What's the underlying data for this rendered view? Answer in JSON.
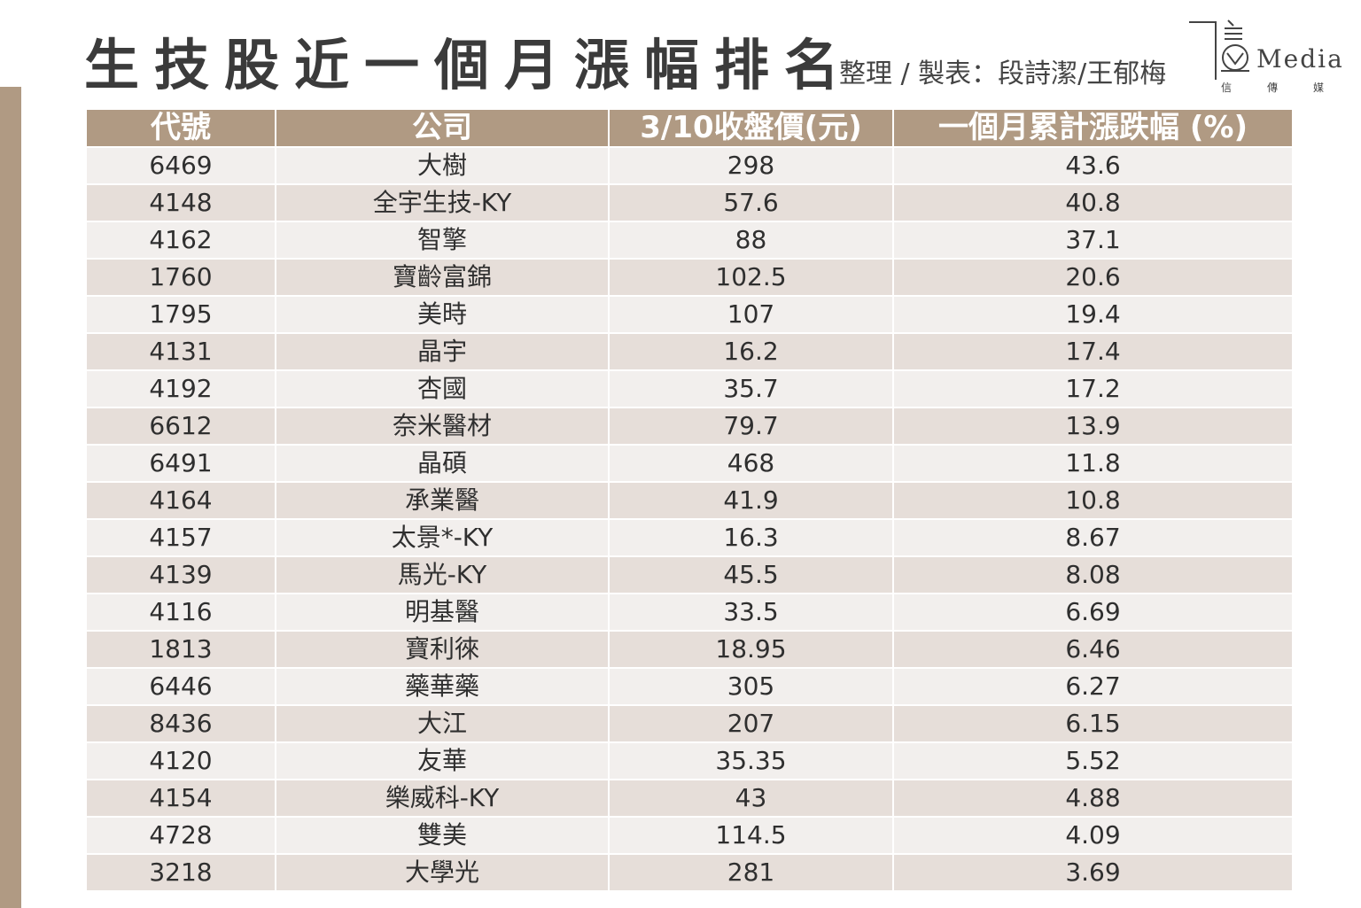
{
  "title": "生技股近一個月漲幅排名",
  "credits": "整理 / 製表：段詩潔/王郁梅",
  "logo": {
    "text": "Media",
    "sub": "信傳媒"
  },
  "table": {
    "headers": [
      "代號",
      "公司",
      "3/10收盤價(元)",
      "一個月累計漲跌幅 (%)"
    ],
    "rows": [
      [
        "6469",
        "大樹",
        "298",
        "43.6"
      ],
      [
        "4148",
        "全宇生技-KY",
        "57.6",
        "40.8"
      ],
      [
        "4162",
        "智擎",
        "88",
        "37.1"
      ],
      [
        "1760",
        "寶齡富錦",
        "102.5",
        "20.6"
      ],
      [
        "1795",
        "美時",
        "107",
        "19.4"
      ],
      [
        "4131",
        "晶宇",
        "16.2",
        "17.4"
      ],
      [
        "4192",
        "杏國",
        "35.7",
        "17.2"
      ],
      [
        "6612",
        "奈米醫材",
        "79.7",
        "13.9"
      ],
      [
        "6491",
        "晶碩",
        "468",
        "11.8"
      ],
      [
        "4164",
        "承業醫",
        "41.9",
        "10.8"
      ],
      [
        "4157",
        "太景*-KY",
        "16.3",
        "8.67"
      ],
      [
        "4139",
        "馬光-KY",
        "45.5",
        "8.08"
      ],
      [
        "4116",
        "明基醫",
        "33.5",
        "6.69"
      ],
      [
        "1813",
        "寶利徠",
        "18.95",
        "6.46"
      ],
      [
        "6446",
        "藥華藥",
        "305",
        "6.27"
      ],
      [
        "8436",
        "大江",
        "207",
        "6.15"
      ],
      [
        "4120",
        "友華",
        "35.35",
        "5.52"
      ],
      [
        "4154",
        "樂威科-KY",
        "43",
        "4.88"
      ],
      [
        "4728",
        "雙美",
        "114.5",
        "4.09"
      ],
      [
        "3218",
        "大學光",
        "281",
        "3.69"
      ]
    ]
  }
}
